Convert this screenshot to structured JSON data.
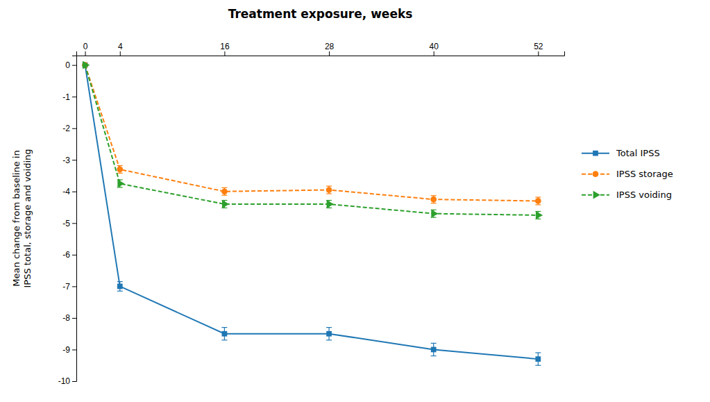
{
  "chart_data": {
    "type": "line",
    "title": "Treatment exposure, weeks",
    "ylabel": "Mean change from baseline in\nIPSS total, storage and voiding",
    "x": [
      0,
      4,
      16,
      28,
      40,
      52
    ],
    "series": [
      {
        "name": "Total IPSS",
        "values": [
          0,
          -7.0,
          -8.5,
          -8.5,
          -9.0,
          -9.3
        ],
        "errors": [
          0,
          0.15,
          0.2,
          0.2,
          0.2,
          0.2
        ],
        "marker": "square",
        "line_style": "solid"
      },
      {
        "name": "IPSS storage",
        "values": [
          0,
          -3.3,
          -4.0,
          -3.95,
          -4.25,
          -4.3
        ],
        "errors": [
          0,
          0.12,
          0.12,
          0.12,
          0.12,
          0.12
        ],
        "marker": "circle",
        "line_style": "dashed"
      },
      {
        "name": "IPSS voiding",
        "values": [
          0,
          -3.75,
          -4.4,
          -4.4,
          -4.7,
          -4.75
        ],
        "errors": [
          0,
          0.12,
          0.12,
          0.12,
          0.12,
          0.12
        ],
        "marker": "triangle-right",
        "line_style": "dashed"
      }
    ],
    "xlim": [
      -1,
      55
    ],
    "xticks": [
      0,
      4,
      16,
      28,
      40,
      52
    ],
    "ylim": [
      -10,
      0.3
    ],
    "yticks": [
      0,
      -1,
      -2,
      -3,
      -4,
      -5,
      -6,
      -7,
      -8,
      -9,
      -10
    ],
    "grid": false,
    "legend": "right"
  }
}
